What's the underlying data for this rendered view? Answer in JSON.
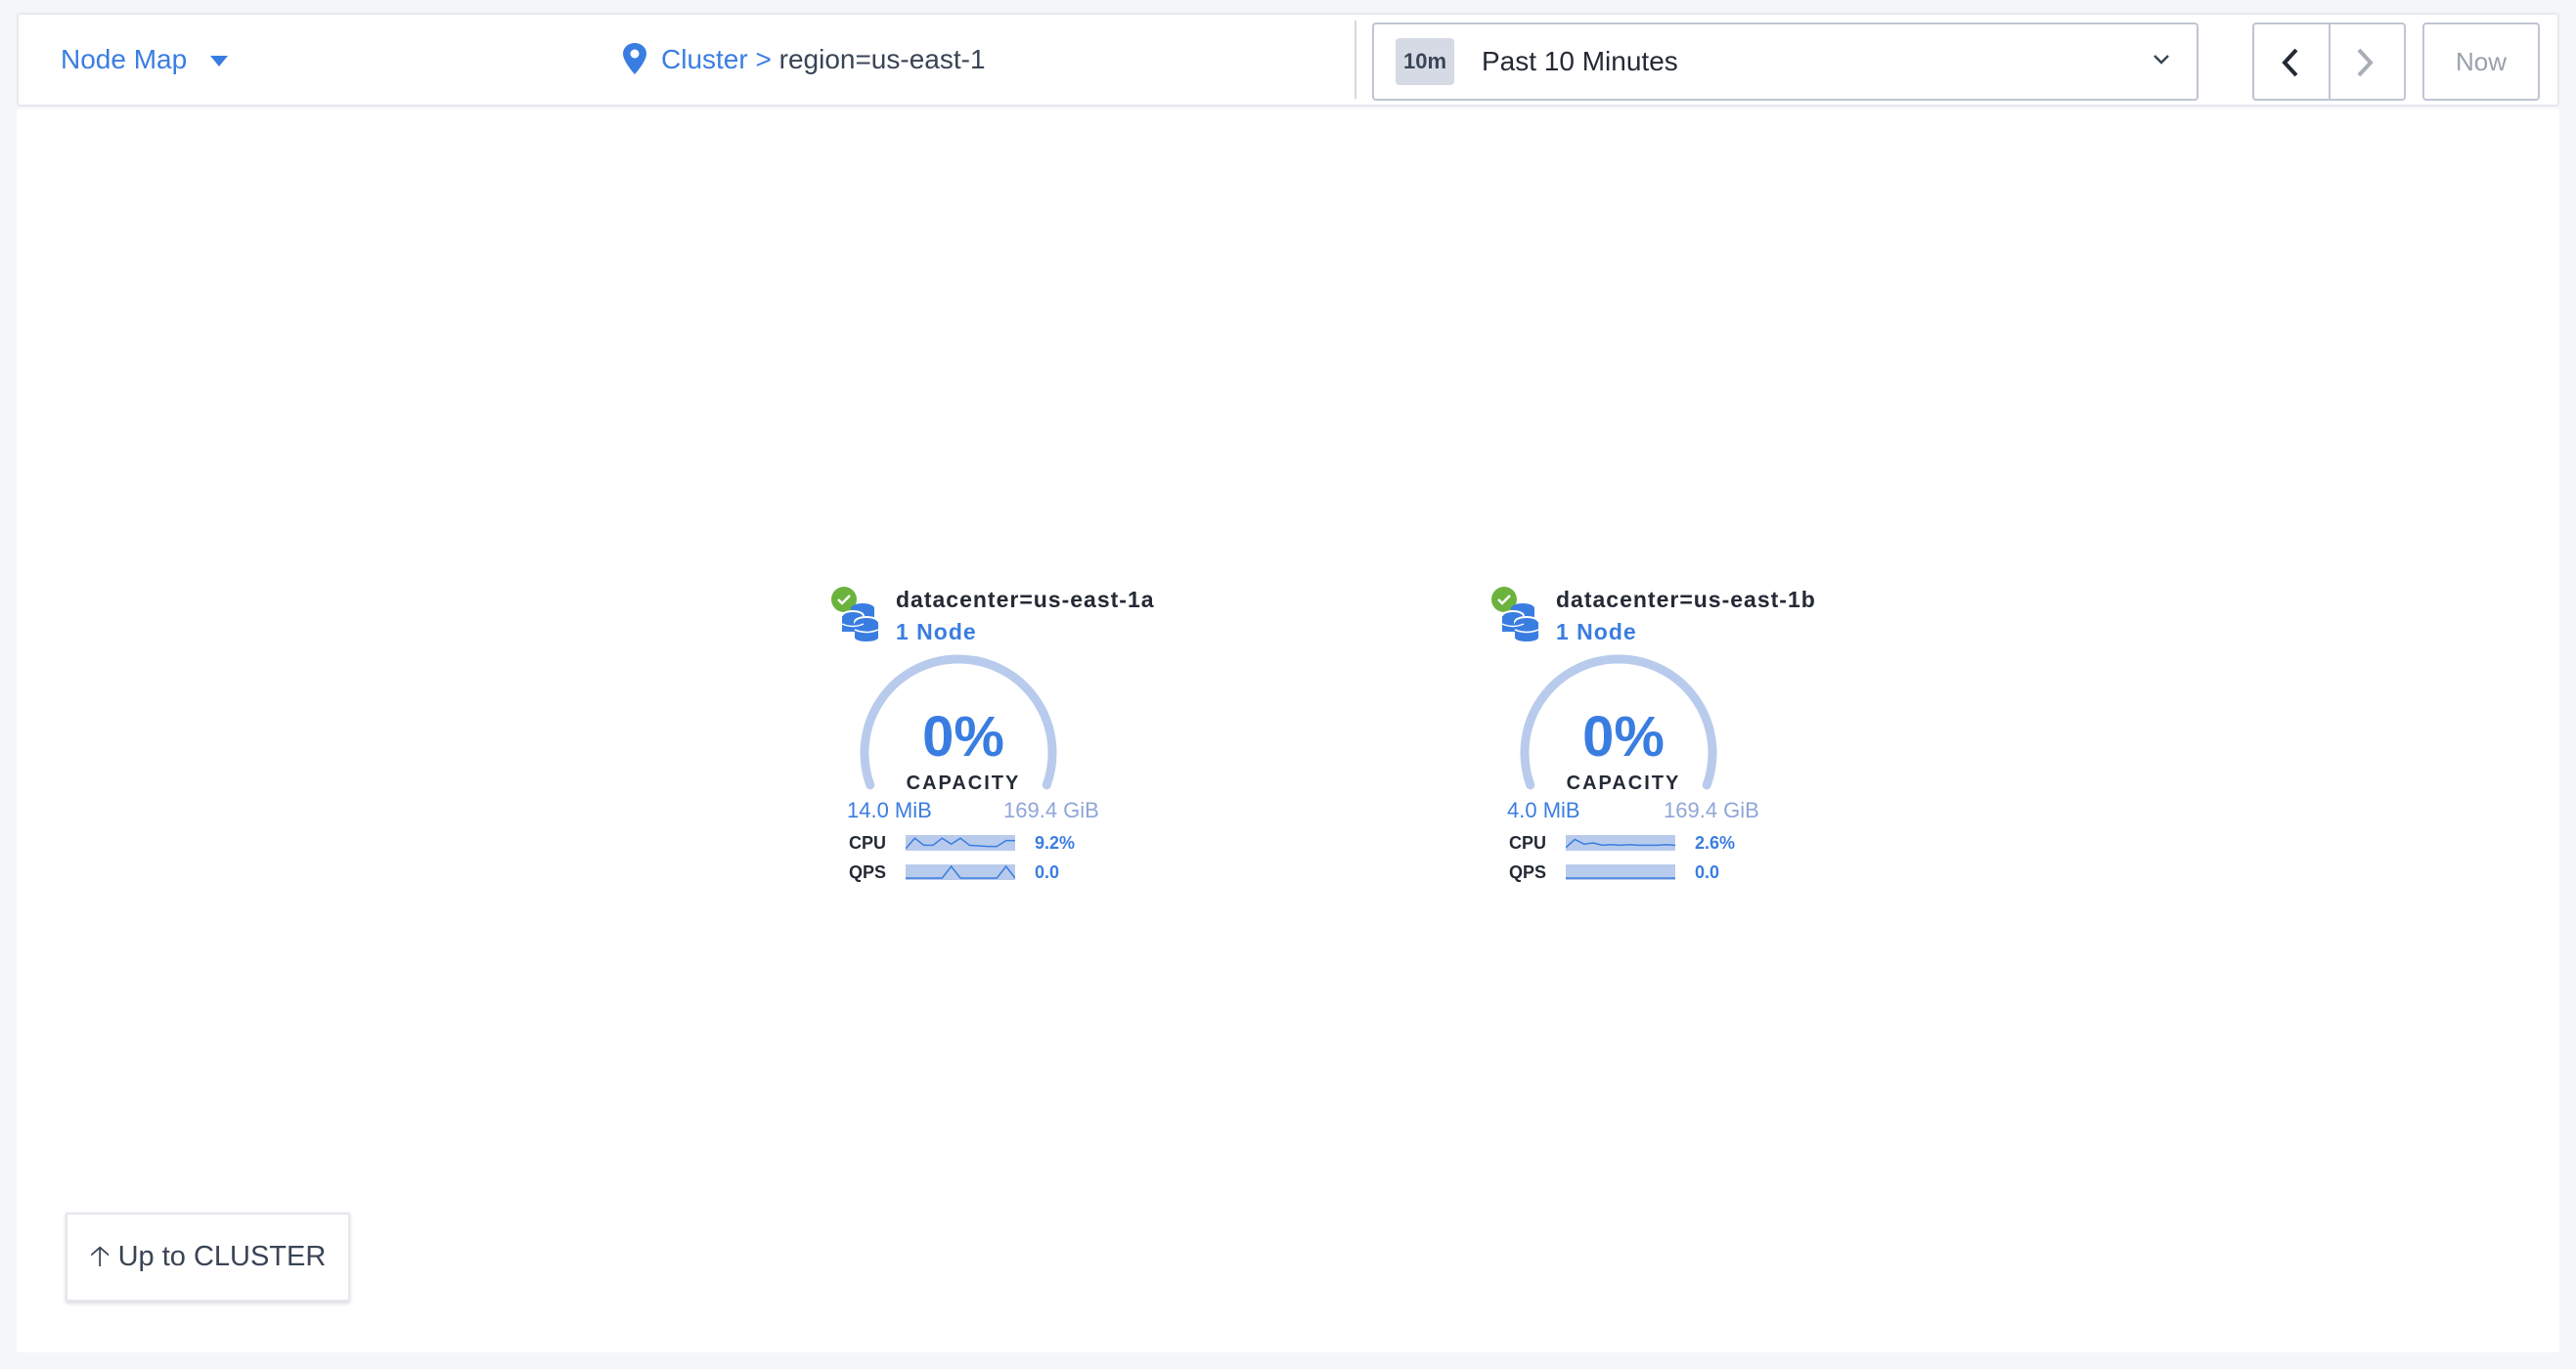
{
  "header": {
    "view_selector": "Node Map",
    "breadcrumb": {
      "root": "Cluster",
      "separator": ">",
      "current": "region=us-east-1"
    },
    "time": {
      "badge": "10m",
      "label": "Past 10 Minutes",
      "now_label": "Now"
    }
  },
  "colors": {
    "accent": "#3a7de1",
    "healthy": "#6cb33e",
    "gauge_track": "#b9cbec"
  },
  "localities": [
    {
      "name": "datacenter=us-east-1a",
      "nodes": "1 Node",
      "status": "healthy",
      "capacity_pct": "0%",
      "capacity_label": "CAPACITY",
      "used": "14.0 MiB",
      "total": "169.4 GiB",
      "cpu": {
        "label": "CPU",
        "value": "9.2%",
        "spark": [
          0,
          0.9,
          0.3,
          0.3,
          0.9,
          0.4,
          0.9,
          0.3,
          0.25,
          0.2,
          0.2,
          0.7,
          0.7
        ]
      },
      "qps": {
        "label": "QPS",
        "value": "0.0",
        "spark": [
          0,
          0,
          0,
          0,
          0,
          1,
          0,
          0,
          0,
          0,
          0,
          1,
          0
        ]
      }
    },
    {
      "name": "datacenter=us-east-1b",
      "nodes": "1 Node",
      "status": "healthy",
      "capacity_pct": "0%",
      "capacity_label": "CAPACITY",
      "used": "4.0 MiB",
      "total": "169.4 GiB",
      "cpu": {
        "label": "CPU",
        "value": "2.6%",
        "spark": [
          0.1,
          0.8,
          0.4,
          0.5,
          0.3,
          0.35,
          0.3,
          0.35,
          0.3,
          0.3,
          0.3,
          0.35,
          0.3
        ]
      },
      "qps": {
        "label": "QPS",
        "value": "0.0",
        "spark": [
          0,
          0,
          0,
          0,
          0,
          0,
          0,
          0,
          0,
          0,
          0,
          0,
          0
        ]
      }
    }
  ],
  "footer": {
    "up_button": "Up to CLUSTER",
    "up_icon": "arrow-up-icon"
  }
}
